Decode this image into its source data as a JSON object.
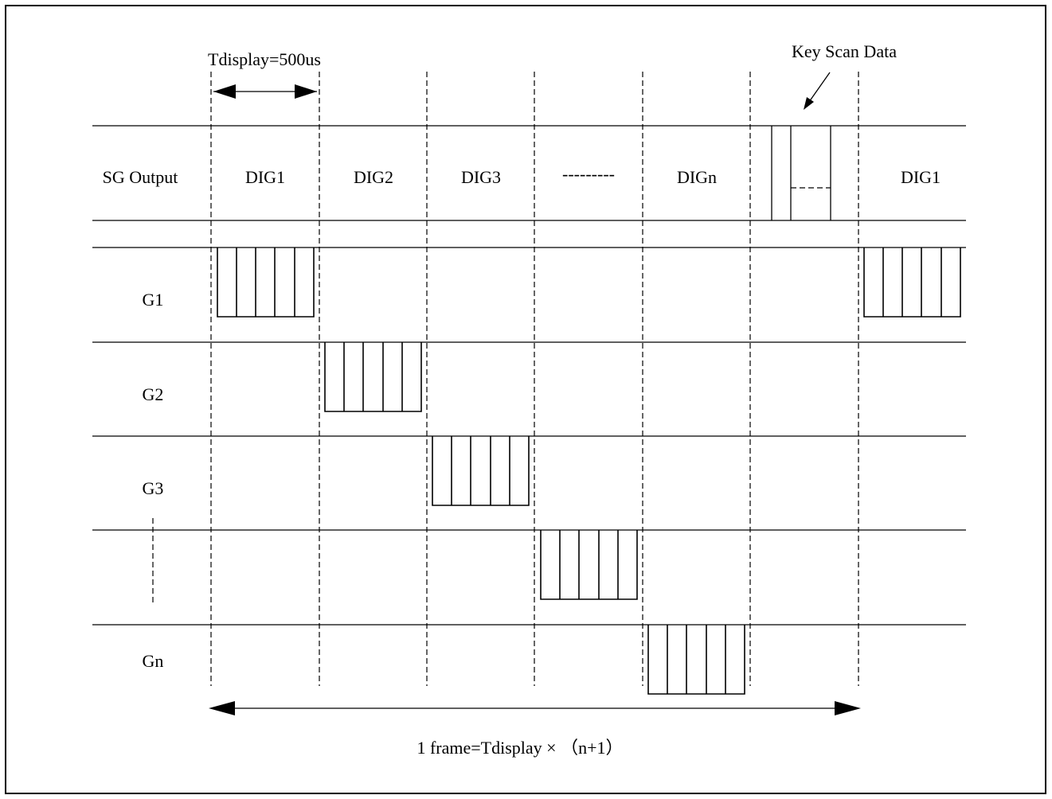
{
  "diagram": {
    "top_annotation": "Tdisplay=500us",
    "key_scan_annotation": "Key Scan Data",
    "frame_annotation": "1 frame=Tdisplay × （n+1）",
    "sg_output": {
      "label": "SG Output",
      "slots": [
        "DIG1",
        "DIG2",
        "DIG3",
        "---------",
        "DIGn",
        "",
        "DIG1"
      ]
    },
    "grid_rows": [
      {
        "label": "G1"
      },
      {
        "label": "G2"
      },
      {
        "label": "G3"
      },
      {
        "label": ""
      },
      {
        "label": "Gn"
      }
    ]
  }
}
